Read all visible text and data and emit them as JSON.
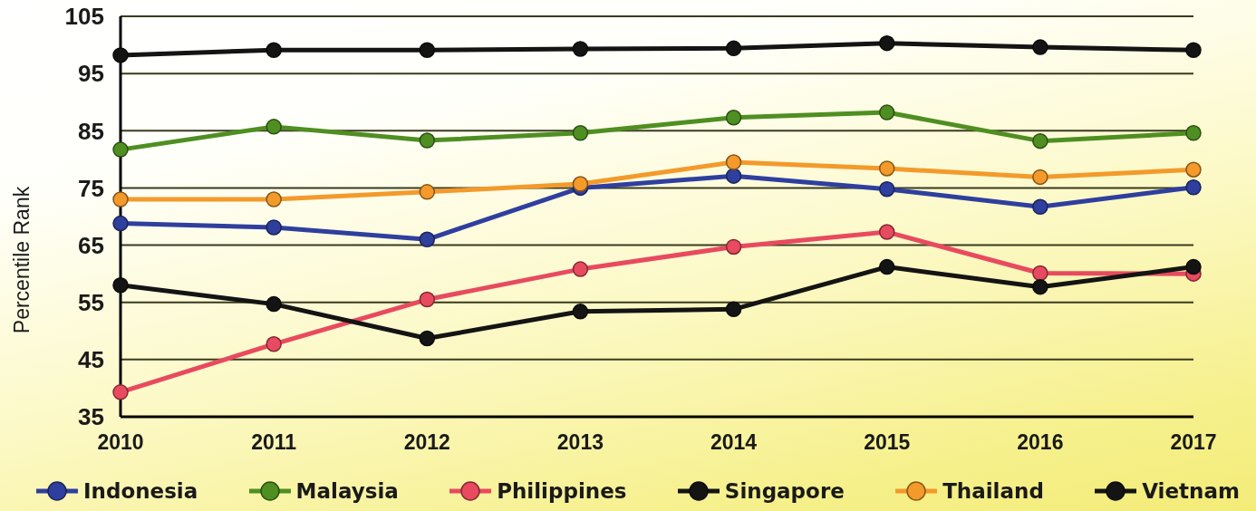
{
  "chart_data": {
    "type": "line",
    "ylabel": "Percentile Rank",
    "categories": [
      "2010",
      "2011",
      "2012",
      "2013",
      "2014",
      "2015",
      "2016",
      "2017"
    ],
    "series": [
      {
        "name": "Indonesia",
        "color": "#2f3f9e",
        "values": [
          68.8,
          68.1,
          66.0,
          75.0,
          77.1,
          74.8,
          71.7,
          75.1
        ]
      },
      {
        "name": "Malaysia",
        "color": "#4f8f22",
        "values": [
          81.7,
          85.7,
          83.3,
          84.6,
          87.3,
          88.2,
          83.2,
          84.6
        ]
      },
      {
        "name": "Philippines",
        "color": "#e84a5f",
        "values": [
          39.3,
          47.7,
          55.5,
          60.8,
          64.7,
          67.3,
          60.1,
          60.0
        ]
      },
      {
        "name": "Singapore",
        "color": "#141414",
        "values": [
          98.2,
          99.1,
          99.1,
          99.3,
          99.4,
          100.3,
          99.6,
          99.1
        ]
      },
      {
        "name": "Thailand",
        "color": "#f39a2b",
        "values": [
          73.0,
          73.0,
          74.3,
          75.7,
          79.5,
          78.4,
          76.9,
          78.2
        ]
      },
      {
        "name": "Vietnam",
        "color": "#141414",
        "values": [
          58.0,
          54.7,
          48.7,
          53.4,
          53.8,
          61.2,
          57.7,
          61.2
        ]
      }
    ],
    "ylim": [
      35,
      105
    ],
    "yticks": [
      35,
      45,
      55,
      65,
      75,
      85,
      95,
      105
    ],
    "grid": "y",
    "legend": "bottom",
    "marker": "circle",
    "line_style": "solid"
  }
}
